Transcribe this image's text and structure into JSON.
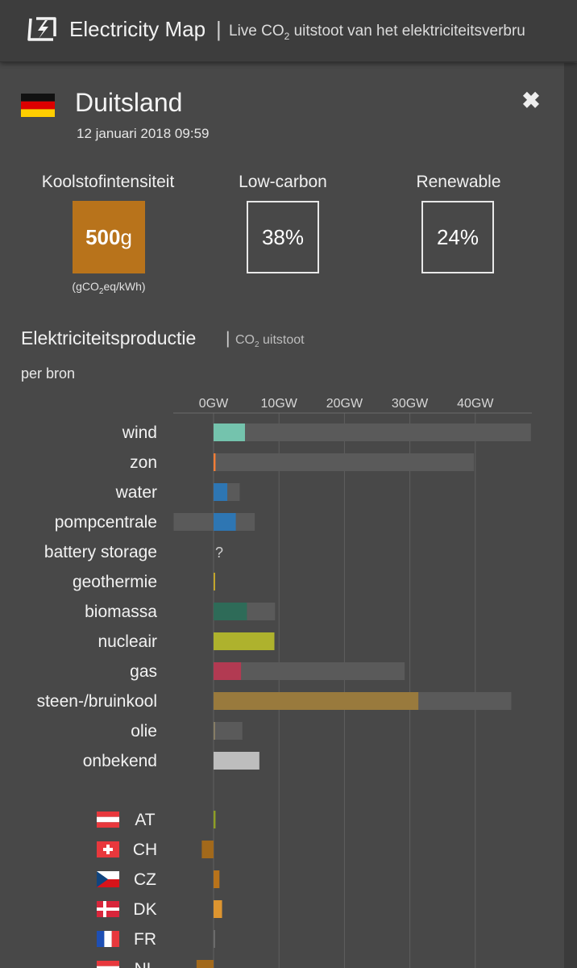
{
  "header": {
    "app_name": "Electricity Map",
    "separator": "|",
    "tagline_pre": "Live CO",
    "tagline_sub": "2",
    "tagline_post": " uitstoot van het elektriciteitsverbru"
  },
  "country": {
    "name": "Duitsland",
    "datetime": "12 januari 2018 09:59"
  },
  "kpis": {
    "carbon_title": "Koolstofintensiteit",
    "carbon_value": "500",
    "carbon_unit_suffix": "g",
    "carbon_color": "#b8731b",
    "unit_pre": "(gCO",
    "unit_sub": "2",
    "unit_post": "eq/kWh)",
    "lowcarbon_title": "Low-carbon",
    "lowcarbon_value": "38%",
    "renewable_title": "Renewable",
    "renewable_value": "24%"
  },
  "production": {
    "title": "Elektriciteitsproductie",
    "separator": "|",
    "co2_pre": "CO",
    "co2_sub": "2",
    "co2_post": " uitstoot",
    "subtitle": "per bron"
  },
  "chart_data": {
    "type": "bar",
    "unit": "GW",
    "ticks": [
      "0GW",
      "10GW",
      "20GW",
      "30GW",
      "40GW"
    ],
    "tick_values": [
      0,
      10,
      20,
      30,
      40
    ],
    "grid": true,
    "sources": [
      {
        "name": "wind",
        "value": 4.8,
        "capacity": 48.5,
        "capacity_min": 0,
        "color": "#74c3ad"
      },
      {
        "name": "zon",
        "value": 0.3,
        "capacity": 39.8,
        "capacity_min": 0,
        "color": "#f27d36"
      },
      {
        "name": "water",
        "value": 2.1,
        "capacity": 4.0,
        "capacity_min": 0,
        "color": "#2e76b3"
      },
      {
        "name": "pompcentrale",
        "value": 3.4,
        "capacity": 6.3,
        "capacity_min": -6.1,
        "color": "#2e76b3"
      },
      {
        "name": "battery storage",
        "value": null,
        "capacity": null,
        "capacity_min": null,
        "color": "#2e76b3",
        "missing_label": "?"
      },
      {
        "name": "geothermie",
        "value": 0.05,
        "capacity": 0.05,
        "capacity_min": 0,
        "color": "#c2a52b"
      },
      {
        "name": "biomassa",
        "value": 5.1,
        "capacity": 9.4,
        "capacity_min": 0,
        "color": "#2e6b58"
      },
      {
        "name": "nucleair",
        "value": 9.3,
        "capacity": 9.3,
        "capacity_min": 0,
        "color": "#aeb22d"
      },
      {
        "name": "gas",
        "value": 4.2,
        "capacity": 29.2,
        "capacity_min": 0,
        "color": "#b23a52"
      },
      {
        "name": "steen-/bruinkool",
        "value": 31.3,
        "capacity": 45.5,
        "capacity_min": 0,
        "color": "#997a3d"
      },
      {
        "name": "olie",
        "value": 0.2,
        "capacity": 4.4,
        "capacity_min": 0,
        "color": "#867d66"
      },
      {
        "name": "onbekend",
        "value": 7.0,
        "capacity": null,
        "capacity_min": 0,
        "color": "#bdbdbd"
      }
    ],
    "exchanges": [
      {
        "code": "AT",
        "flag": "at",
        "value": 0.3,
        "color": "#8e9e25"
      },
      {
        "code": "CH",
        "flag": "ch",
        "value": -1.8,
        "color": "#a2691b"
      },
      {
        "code": "CZ",
        "flag": "cz",
        "value": 0.9,
        "color": "#b8731b"
      },
      {
        "code": "DK",
        "flag": "dk",
        "value": 1.3,
        "color": "#dd9530"
      },
      {
        "code": "FR",
        "flag": "fr",
        "value": 0.1,
        "color": "#6b6b6b"
      },
      {
        "code": "NL",
        "flag": "nl",
        "value": -2.6,
        "color": "#a2691b"
      }
    ]
  }
}
